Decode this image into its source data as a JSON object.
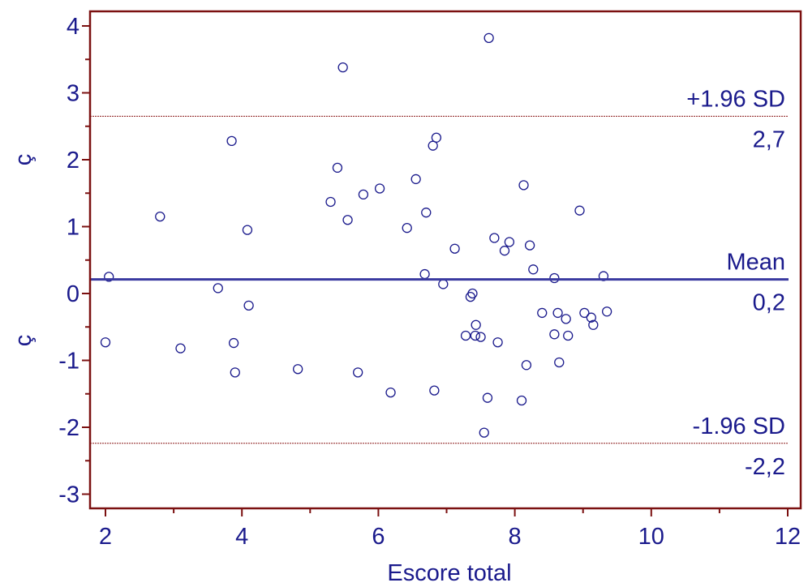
{
  "chart_data": {
    "type": "scatter",
    "title": "",
    "xlabel": "Escore total",
    "ylabel_top": "ç",
    "ylabel_bottom": "ç",
    "xlim": [
      2,
      12
    ],
    "ylim": [
      -3.2,
      4.2
    ],
    "xticks": [
      "2",
      "4",
      "6",
      "8",
      "10",
      "12"
    ],
    "yticks": [
      "-3",
      "-2",
      "-1",
      "0",
      "1",
      "2",
      "3",
      "4"
    ],
    "grid": false,
    "reference_lines": {
      "upper": {
        "label": "+1.96 SD",
        "value_label": "2,7",
        "value": 2.65
      },
      "mean": {
        "label": "Mean",
        "value_label": "0,2",
        "value": 0.21
      },
      "lower": {
        "label": "-1.96 SD",
        "value_label": "-2,2",
        "value": -2.24
      }
    },
    "colors": {
      "axis": "#7b1010",
      "text": "#1a1a8c",
      "points": "#1a1a8c",
      "mean_line": "#3a3aa0",
      "sd_line": "#8b1a1a"
    },
    "points": [
      {
        "x": 2.0,
        "y": -0.73
      },
      {
        "x": 2.05,
        "y": 0.25
      },
      {
        "x": 2.8,
        "y": 1.15
      },
      {
        "x": 3.1,
        "y": -0.82
      },
      {
        "x": 3.65,
        "y": 0.08
      },
      {
        "x": 3.85,
        "y": 2.28
      },
      {
        "x": 3.88,
        "y": -0.74
      },
      {
        "x": 3.9,
        "y": -1.18
      },
      {
        "x": 4.08,
        "y": 0.95
      },
      {
        "x": 4.1,
        "y": -0.18
      },
      {
        "x": 4.82,
        "y": -1.13
      },
      {
        "x": 5.3,
        "y": 1.37
      },
      {
        "x": 5.4,
        "y": 1.88
      },
      {
        "x": 5.48,
        "y": 3.38
      },
      {
        "x": 5.55,
        "y": 1.1
      },
      {
        "x": 5.7,
        "y": -1.18
      },
      {
        "x": 5.78,
        "y": 1.48
      },
      {
        "x": 6.02,
        "y": 1.57
      },
      {
        "x": 6.18,
        "y": -1.48
      },
      {
        "x": 6.42,
        "y": 0.98
      },
      {
        "x": 6.55,
        "y": 1.71
      },
      {
        "x": 6.68,
        "y": 0.29
      },
      {
        "x": 6.7,
        "y": 1.21
      },
      {
        "x": 6.8,
        "y": 2.21
      },
      {
        "x": 6.82,
        "y": -1.45
      },
      {
        "x": 6.85,
        "y": 2.33
      },
      {
        "x": 6.95,
        "y": 0.14
      },
      {
        "x": 7.12,
        "y": 0.67
      },
      {
        "x": 7.28,
        "y": -0.63
      },
      {
        "x": 7.35,
        "y": -0.05
      },
      {
        "x": 7.38,
        "y": 0.0
      },
      {
        "x": 7.42,
        "y": -0.63
      },
      {
        "x": 7.43,
        "y": -0.47
      },
      {
        "x": 7.5,
        "y": -0.65
      },
      {
        "x": 7.55,
        "y": -2.08
      },
      {
        "x": 7.6,
        "y": -1.56
      },
      {
        "x": 7.62,
        "y": 3.82
      },
      {
        "x": 7.7,
        "y": 0.83
      },
      {
        "x": 7.75,
        "y": -0.73
      },
      {
        "x": 7.85,
        "y": 0.64
      },
      {
        "x": 7.92,
        "y": 0.77
      },
      {
        "x": 8.1,
        "y": -1.6
      },
      {
        "x": 8.13,
        "y": 1.62
      },
      {
        "x": 8.17,
        "y": -1.07
      },
      {
        "x": 8.22,
        "y": 0.72
      },
      {
        "x": 8.27,
        "y": 0.36
      },
      {
        "x": 8.4,
        "y": -0.29
      },
      {
        "x": 8.58,
        "y": -0.61
      },
      {
        "x": 8.58,
        "y": 0.23
      },
      {
        "x": 8.63,
        "y": -0.29
      },
      {
        "x": 8.65,
        "y": -1.03
      },
      {
        "x": 8.75,
        "y": -0.38
      },
      {
        "x": 8.78,
        "y": -0.63
      },
      {
        "x": 8.95,
        "y": 1.24
      },
      {
        "x": 9.02,
        "y": -0.29
      },
      {
        "x": 9.12,
        "y": -0.36
      },
      {
        "x": 9.15,
        "y": -0.47
      },
      {
        "x": 9.3,
        "y": 0.26
      },
      {
        "x": 9.35,
        "y": -0.27
      }
    ]
  }
}
